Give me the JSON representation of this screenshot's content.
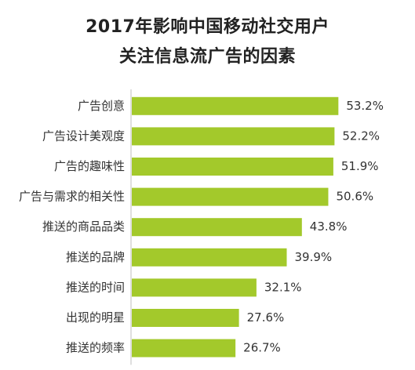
{
  "chart_data": {
    "type": "bar",
    "orientation": "horizontal",
    "title": "2017年影响中国移动社交用户",
    "subtitle": "关注信息流广告的因素",
    "categories": [
      "广告创意",
      "广告设计美观度",
      "广告的趣味性",
      "广告与需求的相关性",
      "推送的商品品类",
      "推送的品牌",
      "推送的时间",
      "出现的明星",
      "推送的频率"
    ],
    "values": [
      53.2,
      52.2,
      51.9,
      50.6,
      43.8,
      39.9,
      32.1,
      27.6,
      26.7
    ],
    "value_labels": [
      "53.2%",
      "52.2%",
      "51.9%",
      "50.6%",
      "43.8%",
      "39.9%",
      "32.1%",
      "27.6%",
      "26.7%"
    ],
    "unit": "%",
    "bar_color": "#a3c92b",
    "axis_color": "#bfbfbf",
    "grid": false,
    "legend": "none"
  }
}
